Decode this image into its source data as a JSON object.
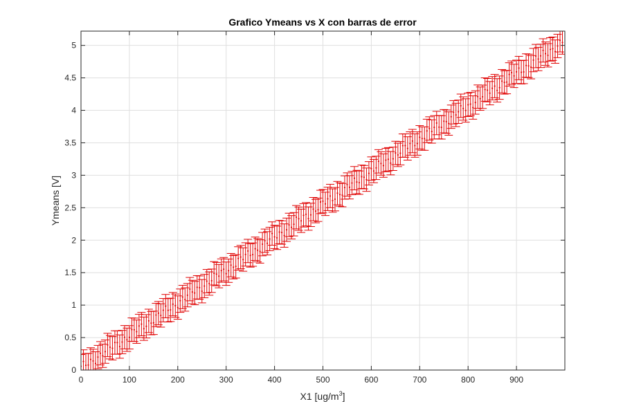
{
  "chart_data": {
    "type": "scatter",
    "title": "Grafico Ymeans vs X con barras de error",
    "xlabel": "X1 [ug/m",
    "xlabel_superscript": "3",
    "xlabel_suffix": "]",
    "ylabel": "Ymeans [V]",
    "xlim": [
      0,
      1000
    ],
    "ylim": [
      0,
      5.22
    ],
    "xticks": [
      0,
      100,
      200,
      300,
      400,
      500,
      600,
      700,
      800,
      900
    ],
    "yticks": [
      0,
      0.5,
      1,
      1.5,
      2,
      2.5,
      3,
      3.5,
      4,
      4.5,
      5
    ],
    "grid": true,
    "marker": "dot",
    "error_bars": true,
    "series": [
      {
        "x_start": 0,
        "x_step": 5,
        "x_end": 995,
        "y_slope_per_unit_x": 0.00505,
        "y_intercept": 0.03,
        "error_halfwidth": 0.18
      }
    ]
  },
  "colors": {
    "series": "#e00000",
    "axes": "#262626",
    "grid": "#dfdfdf",
    "background": "#ffffff"
  }
}
